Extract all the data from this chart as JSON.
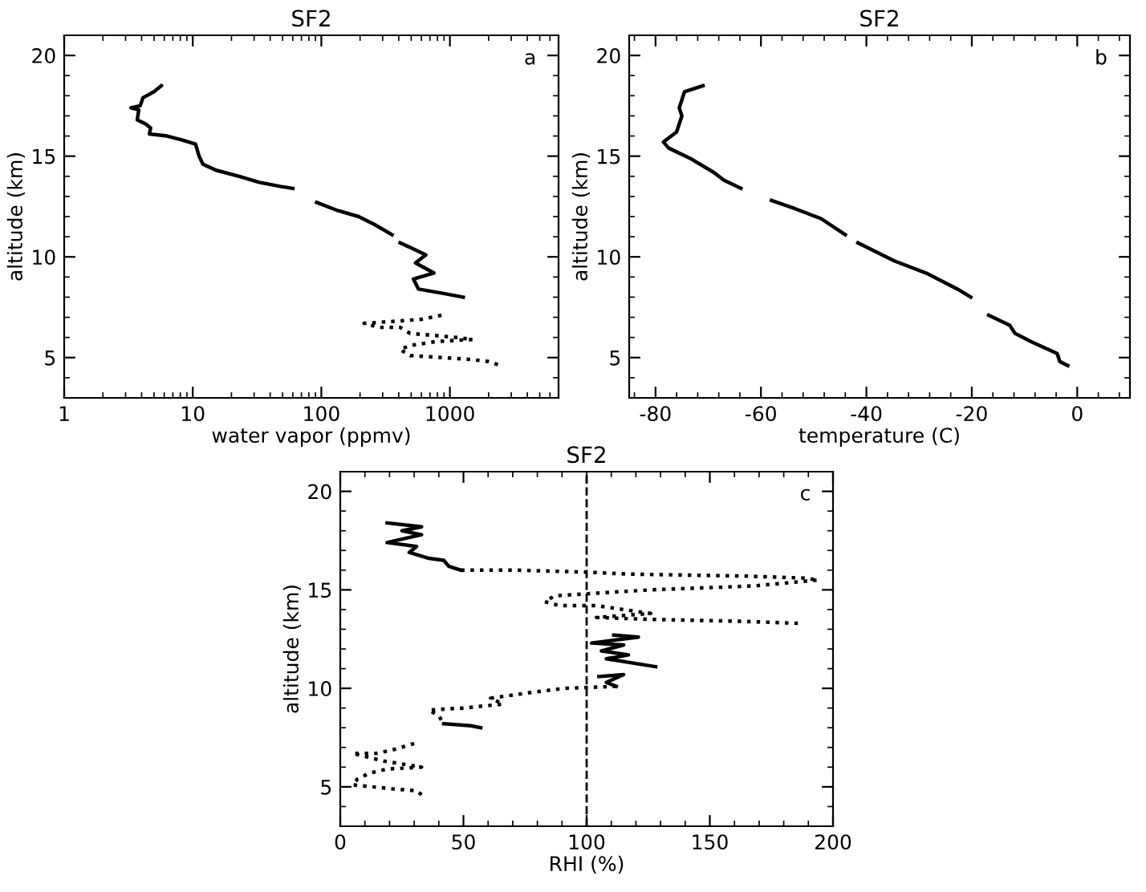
{
  "chart_data": [
    {
      "type": "line",
      "title": "SF2",
      "xlabel": "water vapor (ppmv)",
      "ylabel": "altitude (km)",
      "log": "x",
      "xlim": [
        1,
        7000
      ],
      "xticks": [
        1,
        10,
        100,
        1000
      ],
      "ylim": [
        3,
        21
      ],
      "yticks": [
        5,
        10,
        15,
        20
      ],
      "grid": false,
      "legend": false,
      "marker": "none",
      "annotations": [
        "a"
      ],
      "series": [
        {
          "color": "#000000",
          "line_style": "solid",
          "x": [
            5.7,
            5.0,
            4.1,
            3.9,
            3.3,
            3.8,
            3.7,
            4.3,
            4.7,
            4.6,
            6.3,
            8.3,
            10.5,
            11.2,
            12.0,
            15.2,
            23,
            33,
            48,
            60,
            null,
            92,
            134,
            195,
            260,
            355,
            null,
            410,
            650,
            540,
            750,
            520,
            570,
            860,
            1270
          ],
          "values": [
            18.5,
            18.2,
            17.9,
            17.5,
            17.4,
            17.3,
            16.8,
            16.6,
            16.4,
            16.1,
            16.0,
            15.8,
            15.6,
            15.0,
            14.6,
            14.3,
            14.0,
            13.7,
            13.5,
            13.4,
            null,
            12.7,
            12.3,
            12.0,
            11.6,
            11.1,
            null,
            10.7,
            10.1,
            9.7,
            9.2,
            8.9,
            8.4,
            8.2,
            8.0
          ]
        },
        {
          "color": "#000000",
          "line_style": "dotted",
          "x": [
            860,
            600,
            370,
            215,
            280,
            410,
            490,
            1130,
            1500,
            790,
            490,
            410,
            490,
            1500,
            2000,
            2500
          ],
          "values": [
            7.1,
            6.9,
            6.8,
            6.7,
            6.5,
            6.5,
            6.2,
            6.0,
            5.9,
            5.8,
            5.6,
            5.4,
            5.1,
            4.9,
            4.8,
            4.6
          ]
        }
      ]
    },
    {
      "type": "line",
      "title": "SF2",
      "xlabel": "temperature (C)",
      "ylabel": "altitude (km)",
      "xlim": [
        -85,
        10
      ],
      "xticks": [
        -80,
        -60,
        -40,
        -20,
        0
      ],
      "ylim": [
        3,
        21
      ],
      "yticks": [
        5,
        10,
        15,
        20
      ],
      "grid": false,
      "legend": false,
      "marker": "none",
      "annotations": [
        "b"
      ],
      "series": [
        {
          "color": "#000000",
          "line_style": "solid",
          "x": [
            -71,
            -74.5,
            -75,
            -75.5,
            -75,
            -75.5,
            -76,
            -77,
            -78.5,
            -77.5,
            -73.5,
            -69,
            -67,
            -63.8,
            null,
            -58,
            -53.6,
            -48.6,
            -44,
            null,
            -41.6,
            -34.7,
            -28.7,
            -22.7,
            -20.2,
            null,
            -16.8,
            -12.8,
            -11.8,
            -8.8,
            -3.8,
            -3.3,
            -1.8
          ],
          "values": [
            18.5,
            18.2,
            17.8,
            17.4,
            17.0,
            16.6,
            16.2,
            16.0,
            15.7,
            15.4,
            14.9,
            14.2,
            13.8,
            13.4,
            null,
            12.8,
            12.4,
            11.9,
            11.1,
            null,
            10.7,
            9.8,
            9.2,
            8.4,
            8.0,
            null,
            7.1,
            6.6,
            6.2,
            5.8,
            5.2,
            4.8,
            4.6
          ]
        }
      ]
    },
    {
      "type": "line",
      "title": "SF2",
      "xlabel": "RHI (%)",
      "ylabel": "altitude (km)",
      "xlim": [
        0,
        200
      ],
      "xticks": [
        0,
        50,
        100,
        150,
        200
      ],
      "ylim": [
        3,
        21
      ],
      "yticks": [
        5,
        10,
        15,
        20
      ],
      "grid": false,
      "legend": false,
      "marker": "none",
      "annotations": [
        "c"
      ],
      "ref_lines": [
        {
          "axis": "x",
          "value": 100,
          "color": "#000000",
          "line_style": "dashed"
        }
      ],
      "series": [
        {
          "color": "#000000",
          "line_style": "solid",
          "x": [
            19,
            33,
            25,
            33,
            19,
            31,
            28,
            36,
            42,
            44,
            49,
            null,
            111,
            121,
            102,
            115,
            106,
            117,
            108,
            128,
            null,
            105,
            115,
            108,
            112,
            null,
            42,
            53,
            57
          ],
          "values": [
            18.4,
            18.2,
            18.0,
            17.8,
            17.4,
            17.2,
            16.9,
            16.6,
            16.5,
            16.2,
            16.0,
            null,
            12.7,
            12.6,
            12.3,
            12.2,
            11.9,
            11.7,
            11.5,
            11.1,
            null,
            10.6,
            10.7,
            10.3,
            10.1,
            null,
            8.2,
            8.1,
            8.0
          ]
        },
        {
          "color": "#000000",
          "line_style": "dotted",
          "x": [
            49,
            72,
            100,
            117,
            164,
            188,
            194,
            168,
            126,
            100,
            87,
            83,
            89,
            104,
            115,
            126,
            104,
            126,
            164,
            186,
            null,
            112,
            91,
            78,
            61,
            66,
            50,
            36,
            40,
            42,
            null,
            30,
            22,
            15,
            5,
            18,
            33,
            19,
            12,
            7,
            5,
            21,
            31,
            33
          ],
          "values": [
            16.0,
            16.0,
            15.9,
            15.8,
            15.7,
            15.6,
            15.5,
            15.2,
            15.0,
            14.8,
            14.7,
            14.4,
            14.2,
            14.2,
            14.0,
            13.8,
            13.6,
            13.5,
            13.4,
            13.3,
            null,
            10.1,
            10.0,
            9.8,
            9.5,
            9.2,
            9.0,
            8.9,
            8.6,
            8.2,
            null,
            7.2,
            6.9,
            6.7,
            6.7,
            6.3,
            6.0,
            5.9,
            5.7,
            5.4,
            5.1,
            4.9,
            4.8,
            4.6
          ]
        }
      ]
    }
  ]
}
